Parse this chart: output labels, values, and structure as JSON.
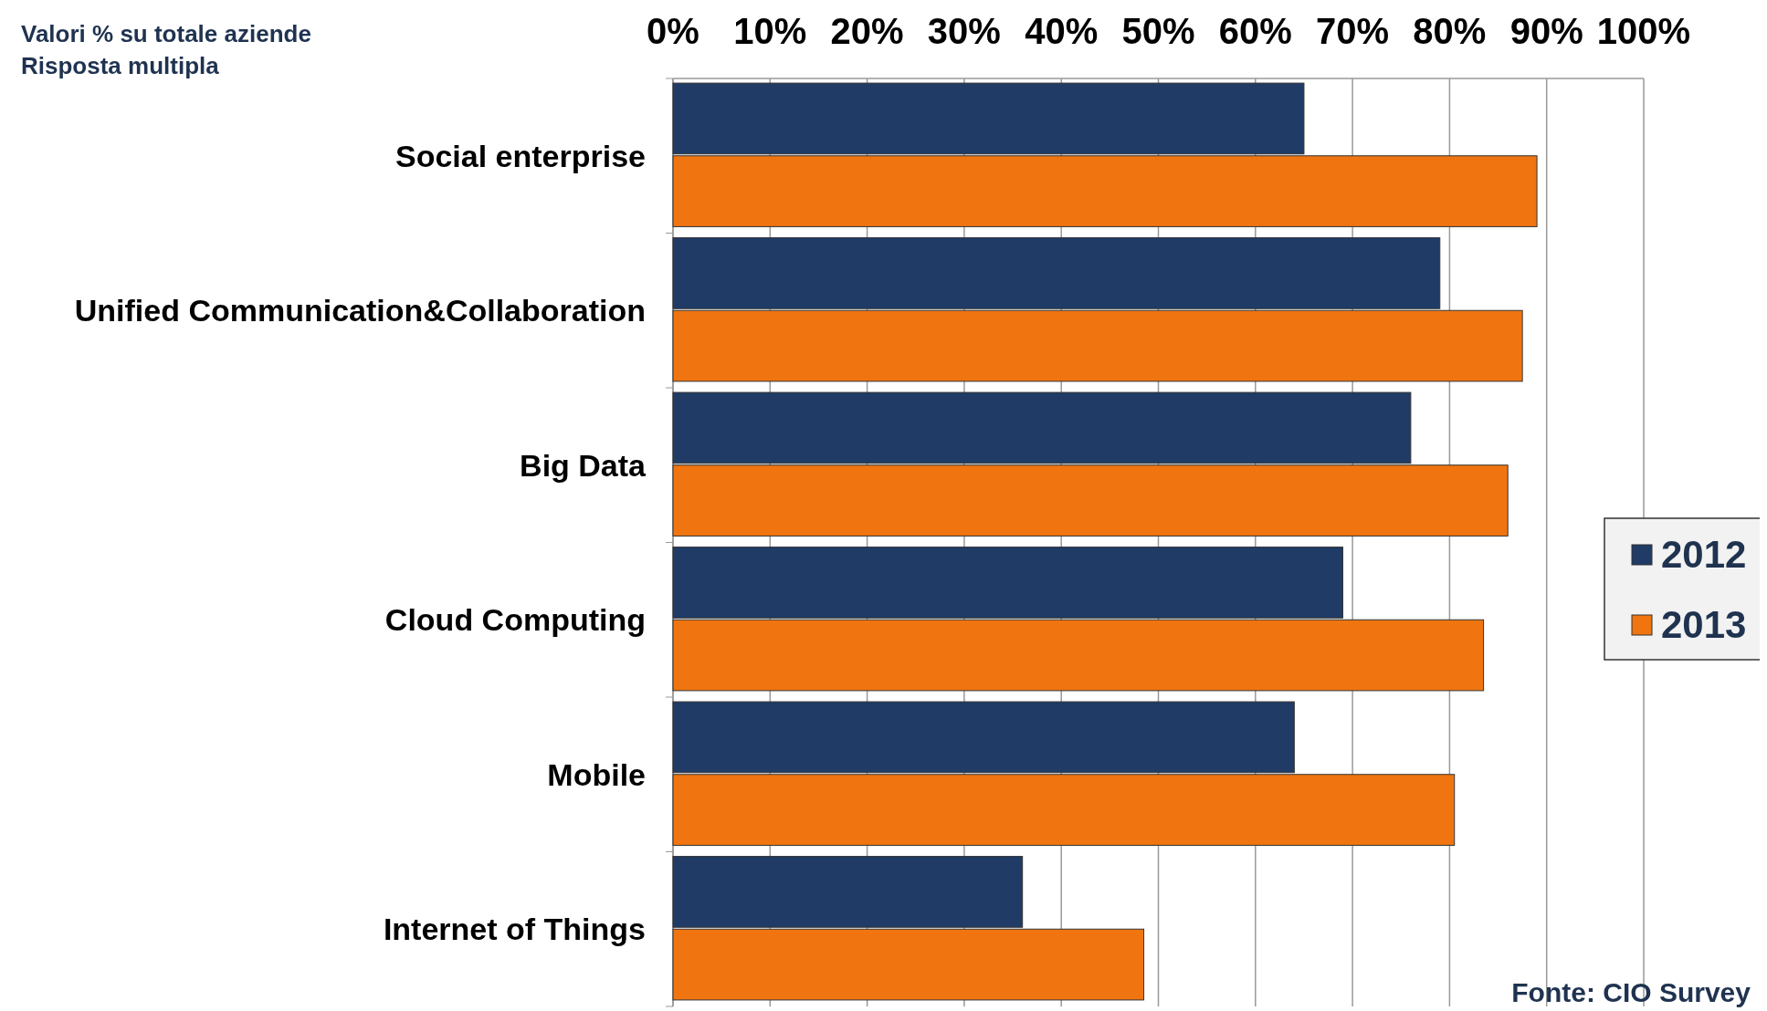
{
  "chart_data": {
    "type": "bar",
    "orientation": "horizontal",
    "title": "Valori % su totale aziende",
    "subtitle": "Risposta multipla",
    "categories": [
      "Social enterprise",
      "Unified Communication&Collaboration",
      "Big Data",
      "Cloud Computing",
      "Mobile",
      "Internet of Things"
    ],
    "series": [
      {
        "name": "2012",
        "color": "#1f3b66",
        "values": [
          65,
          79,
          76,
          69,
          64,
          36
        ]
      },
      {
        "name": "2013",
        "color": "#f07510",
        "values": [
          89,
          87.5,
          86,
          83.5,
          80.5,
          48.5
        ]
      }
    ],
    "xlim": [
      0,
      100
    ],
    "xticks": [
      {
        "value": 0,
        "label": "0%"
      },
      {
        "value": 10,
        "label": "10%"
      },
      {
        "value": 20,
        "label": "20%"
      },
      {
        "value": 30,
        "label": "30%"
      },
      {
        "value": 40,
        "label": "40%"
      },
      {
        "value": 50,
        "label": "50%"
      },
      {
        "value": 60,
        "label": "60%"
      },
      {
        "value": 70,
        "label": "70%"
      },
      {
        "value": 80,
        "label": "80%"
      },
      {
        "value": 90,
        "label": "90%"
      },
      {
        "value": 100,
        "label": "100%"
      }
    ],
    "grid": "x",
    "legend": "right",
    "annotations": [
      "Fonte: CIO Survey"
    ]
  }
}
